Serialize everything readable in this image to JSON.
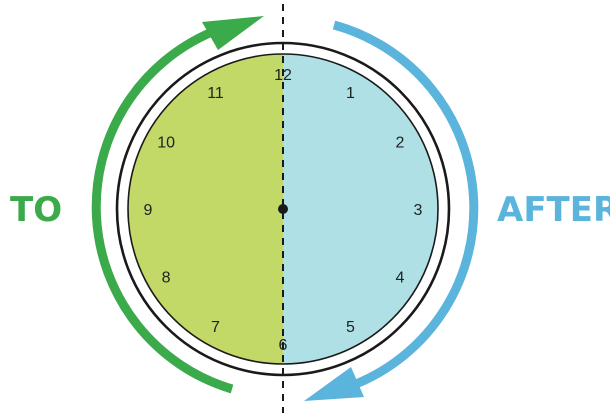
{
  "labels": {
    "left": "TO",
    "right": "AFTER"
  },
  "clock": {
    "numbers": [
      "12",
      "1",
      "2",
      "3",
      "4",
      "5",
      "6",
      "7",
      "8",
      "9",
      "10",
      "11"
    ]
  },
  "colors": {
    "to_accent": "#3aaa4a",
    "after_accent": "#5ab4dc",
    "left_half_fill": "#c2d867",
    "right_half_fill": "#aee0e6",
    "outline": "#1a1a1a"
  },
  "icons": {
    "to_arrow": "curved-arrow-clockwise-up-icon",
    "after_arrow": "curved-arrow-clockwise-down-icon",
    "center": "clock-center-dot-icon"
  }
}
